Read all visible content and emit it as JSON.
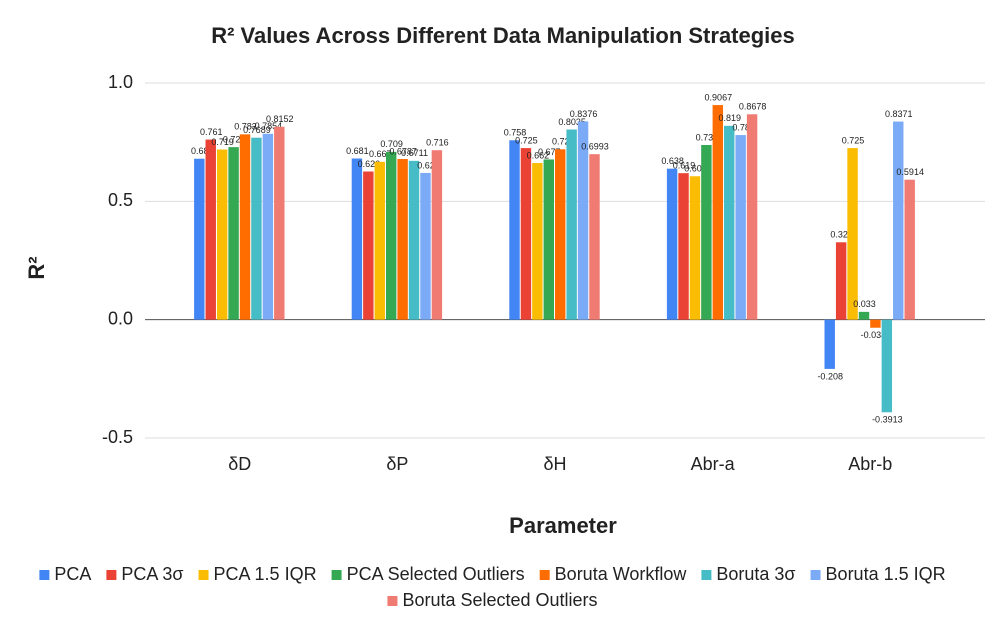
{
  "chart_data": {
    "type": "bar",
    "title": "R² Values Across Different Data Manipulation Strategies",
    "x_label": "Parameter",
    "y_label": "R²",
    "categories": [
      "δD",
      "δP",
      "δH",
      "Abr-a",
      "Abr-b"
    ],
    "series": [
      {
        "name": "PCA",
        "color": "#4285f4",
        "values": [
          0.68,
          0.681,
          0.758,
          0.638,
          -0.208
        ]
      },
      {
        "name": "PCA 3σ",
        "color": "#ea4335",
        "values": [
          0.761,
          0.626,
          0.725,
          0.619,
          0.327
        ]
      },
      {
        "name": "PCA 1.5 IQR",
        "color": "#fbbc04",
        "values": [
          0.719,
          0.667,
          0.662,
          0.606,
          0.725
        ]
      },
      {
        "name": "PCA Selected Outliers",
        "color": "#34a853",
        "values": [
          0.729,
          0.709,
          0.677,
          0.738,
          0.033
        ]
      },
      {
        "name": "Boruta Workflow",
        "color": "#ff6d01",
        "values": [
          0.783,
          0.6787,
          0.72,
          0.9067,
          -0.0341
        ]
      },
      {
        "name": "Boruta 3σ",
        "color": "#46bdc6",
        "values": [
          0.7689,
          0.6711,
          0.8035,
          0.819,
          -0.3913
        ]
      },
      {
        "name": "Boruta 1.5 IQR",
        "color": "#7baaf7",
        "values": [
          0.7854,
          0.62,
          0.8376,
          0.78,
          0.8371
        ]
      },
      {
        "name": "Boruta Selected Outliers",
        "color": "#f07b72",
        "values": [
          0.8152,
          0.716,
          0.6993,
          0.8678,
          0.5914
        ]
      }
    ],
    "ylim": [
      -0.5,
      1.0
    ],
    "yticks": [
      {
        "value": -0.5,
        "label": "-0.5"
      },
      {
        "value": 0,
        "label": "0.0"
      },
      {
        "value": 0.5,
        "label": "0.5"
      },
      {
        "value": 1.0,
        "label": "1.0"
      }
    ],
    "grid": true,
    "legend": "bottom"
  }
}
